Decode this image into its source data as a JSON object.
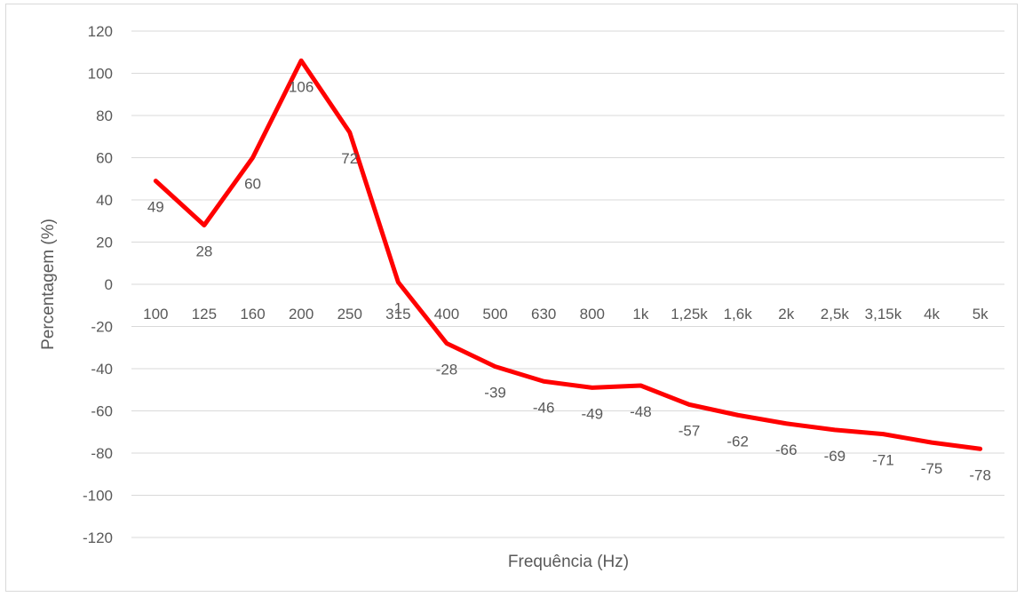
{
  "chart_data": {
    "type": "line",
    "title": "",
    "xlabel": "Frequência (Hz)",
    "ylabel": "Percentagem (%)",
    "ylim": [
      -120,
      120
    ],
    "yticks": [
      120,
      100,
      80,
      60,
      40,
      20,
      0,
      -20,
      -40,
      -60,
      -80,
      -100,
      -120
    ],
    "grid": true,
    "legend": "none",
    "line_color": "#ff0000",
    "categories": [
      "100",
      "125",
      "160",
      "200",
      "250",
      "315",
      "400",
      "500",
      "630",
      "800",
      "1k",
      "1,25k",
      "1,6k",
      "2k",
      "2,5k",
      "3,15k",
      "4k",
      "5k"
    ],
    "series": [
      {
        "values": [
          49,
          28,
          60,
          106,
          72,
          1,
          -28,
          -39,
          -46,
          -49,
          -48,
          -57,
          -62,
          -66,
          -69,
          -71,
          -75,
          -78
        ],
        "labels": [
          "49",
          "28",
          "60",
          "106",
          "72",
          "1",
          "-28",
          "-39",
          "-46",
          "-49",
          "-48",
          "-57",
          "-62",
          "-66",
          "-69",
          "-71",
          "-75",
          "-78"
        ]
      }
    ]
  }
}
